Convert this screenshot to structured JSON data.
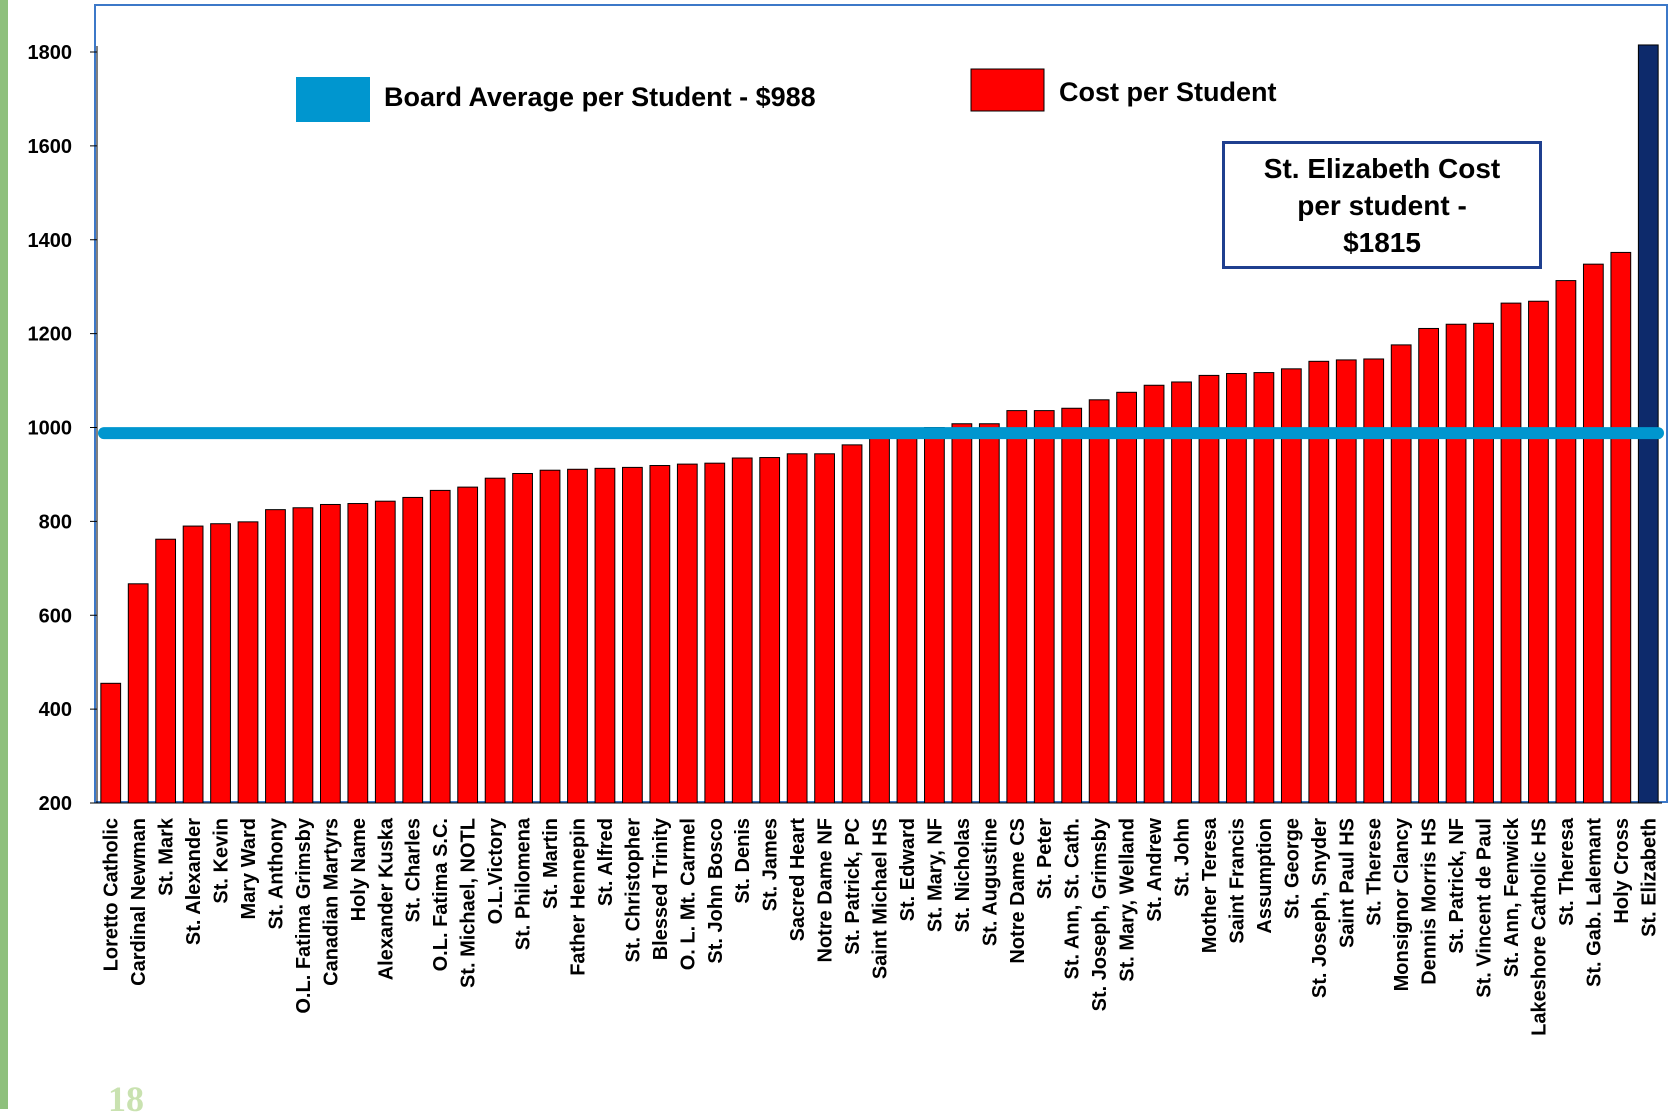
{
  "page_number": "18",
  "legend": {
    "average_label": "Board Average per Student - $988",
    "cost_label": "Cost per Student"
  },
  "callout": {
    "line1": "St. Elizabeth Cost",
    "line2": "per student -",
    "line3": "$1815"
  },
  "colors": {
    "bar": "#ff0000",
    "highlight_bar": "#0d2a6b",
    "average_line": "#0096cf",
    "callout_border": "#1f3f8f",
    "plot_border": "#3c78c8"
  },
  "chart_data": {
    "type": "bar",
    "title": "",
    "xlabel": "",
    "ylabel": "",
    "ylim": [
      200,
      1800
    ],
    "yticks": [
      200,
      400,
      600,
      800,
      1000,
      1200,
      1400,
      1600,
      1800
    ],
    "reference_line": {
      "name": "Board Average per Student - $988",
      "value": 988
    },
    "highlight": "St. Elizabeth",
    "categories": [
      "Loretto Catholic",
      "Cardinal Newman",
      "St. Mark",
      "St. Alexander",
      "St. Kevin",
      "Mary Ward",
      "St. Anthony",
      "O.L. Fatima Grimsby",
      "Canadian Martyrs",
      "Holy Name",
      "Alexander Kuska",
      "St. Charles",
      "O.L. Fatima S.C.",
      "St. Michael, NOTL",
      "O.L.Victory",
      "St. Philomena",
      "St. Martin",
      "Father Hennepin",
      "St. Alfred",
      "St. Christopher",
      "Blessed Trinity",
      "O. L. Mt. Carmel",
      "St. John Bosco",
      "St. Denis",
      "St. James",
      "Sacred Heart",
      "Notre Dame NF",
      "St. Patrick, PC",
      "Saint Michael HS",
      "St. Edward",
      "St. Mary, NF",
      "St. Nicholas",
      "St. Augustine",
      "Notre Dame CS",
      "St. Peter",
      "St. Ann, St. Cath.",
      "St. Joseph, Grimsby",
      "St. Mary, Welland",
      "St. Andrew",
      "St. John",
      "Mother Teresa",
      "Saint Francis",
      "Assumption",
      "St. George",
      "St. Joseph, Snyder",
      "Saint Paul HS",
      "St. Therese",
      "Monsignor Clancy",
      "Dennis Morris HS",
      "St. Patrick, NF",
      "St. Vincent de Paul",
      "St. Ann, Fenwick",
      "Lakeshore Catholic HS",
      "St. Theresa",
      "St. Gab. Lalemant",
      "Holy Cross",
      "St. Elizabeth"
    ],
    "series": [
      {
        "name": "Cost per Student",
        "values": [
          455,
          667,
          762,
          790,
          795,
          799,
          825,
          829,
          836,
          838,
          843,
          851,
          866,
          873,
          892,
          902,
          909,
          911,
          913,
          915,
          919,
          922,
          924,
          935,
          936,
          944,
          944,
          963,
          980,
          990,
          1000,
          1008,
          1008,
          1036,
          1036,
          1041,
          1059,
          1075,
          1090,
          1097,
          1111,
          1115,
          1117,
          1125,
          1141,
          1144,
          1146,
          1176,
          1211,
          1220,
          1222,
          1265,
          1269,
          1313,
          1348,
          1373,
          1815
        ]
      }
    ]
  }
}
